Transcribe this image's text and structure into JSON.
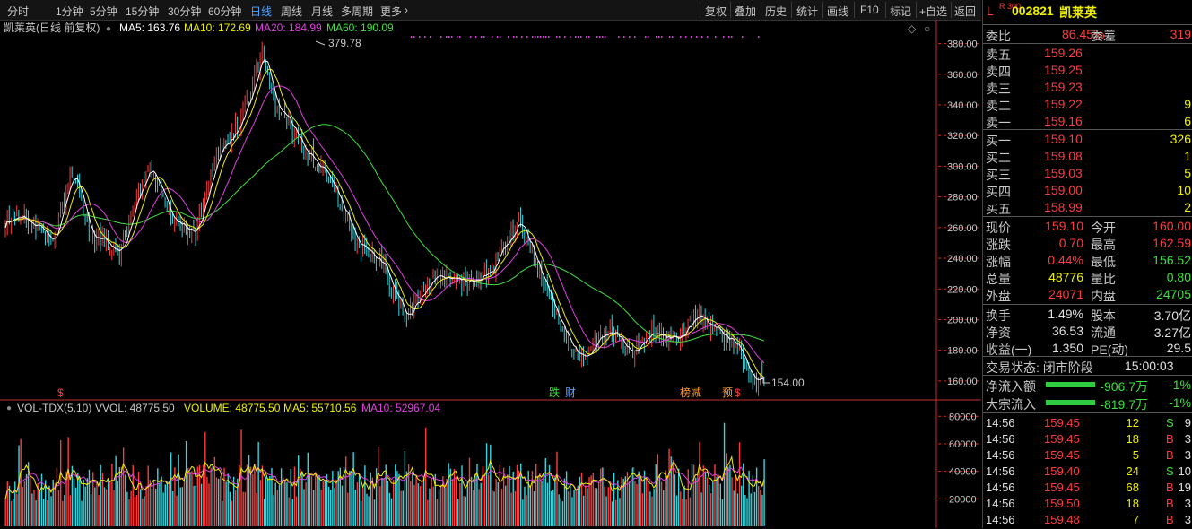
{
  "toolbar": {
    "periods": [
      "分时",
      "1分钟",
      "5分钟",
      "15分钟",
      "30分钟",
      "60分钟",
      "日线",
      "周线",
      "月线",
      "多周期",
      "更多"
    ],
    "active_period": "日线",
    "right": [
      "复权",
      "叠加",
      "历史",
      "统计",
      "画线",
      "F10",
      "标记",
      "+自选",
      "返回"
    ]
  },
  "legend": {
    "title": "凯莱英(日线 前复权)",
    "ma5": "MA5: 163.76",
    "ma10": "MA10: 172.69",
    "ma20": "MA20: 184.99",
    "ma60": "MA60: 190.09"
  },
  "vol_legend": {
    "name": "VOL-TDX(5,10)",
    "vvol": "VVOL: 48775.50",
    "volume": "VOLUME: 48775.50",
    "ma5": "MA5: 55710.56",
    "ma10": "MA10: 52967.04"
  },
  "annotations": {
    "high": "379.78",
    "low": "154.00"
  },
  "markers": [
    "$",
    "跌",
    "财",
    "榜减",
    "预",
    "$"
  ],
  "colors": {
    "up": "#ff3b3b",
    "down": "#35d6e0",
    "ma5": "#ffffff",
    "ma10": "#f0f000",
    "ma20": "#e040e0",
    "ma60": "#40e040",
    "axis": "#c43030"
  },
  "chart_data": {
    "type": "candlestick",
    "title": "凯莱英(日线 前复权)",
    "price_axis": {
      "ticks": [
        160,
        180,
        200,
        220,
        240,
        260,
        280,
        300,
        320,
        340,
        360,
        380
      ],
      "range": [
        150,
        385
      ]
    },
    "volume_axis": {
      "ticks": [
        20000,
        40000,
        60000,
        80000
      ],
      "range": [
        0,
        88000
      ]
    },
    "close_trend": [
      [
        0,
        265
      ],
      [
        10,
        268
      ],
      [
        25,
        252
      ],
      [
        35,
        298
      ],
      [
        45,
        255
      ],
      [
        60,
        243
      ],
      [
        75,
        302
      ],
      [
        88,
        262
      ],
      [
        100,
        258
      ],
      [
        112,
        310
      ],
      [
        124,
        330
      ],
      [
        135,
        372
      ],
      [
        142,
        340
      ],
      [
        155,
        315
      ],
      [
        165,
        300
      ],
      [
        172,
        290
      ],
      [
        185,
        248
      ],
      [
        198,
        238
      ],
      [
        210,
        200
      ],
      [
        225,
        230
      ],
      [
        240,
        224
      ],
      [
        255,
        232
      ],
      [
        270,
        265
      ],
      [
        282,
        228
      ],
      [
        295,
        186
      ],
      [
        305,
        178
      ],
      [
        318,
        195
      ],
      [
        330,
        176
      ],
      [
        340,
        192
      ],
      [
        352,
        188
      ],
      [
        365,
        203
      ],
      [
        375,
        190
      ],
      [
        385,
        185
      ],
      [
        392,
        160
      ]
    ],
    "last": {
      "ma5": 163.76,
      "ma10": 172.69,
      "ma20": 184.99,
      "ma60": 190.09,
      "vvol": 48775.5,
      "vol_ma5": 55710.56,
      "vol_ma10": 52967.04
    }
  },
  "quote": {
    "flag": "L",
    "code": "002821",
    "name": "凯莱英",
    "code_tag": "R 300",
    "weibi_label": "委比",
    "weibi": "86.45%",
    "weicha_label": "委差",
    "weicha": "319",
    "sell": [
      {
        "label": "卖五",
        "price": "159.26",
        "vol": ""
      },
      {
        "label": "卖四",
        "price": "159.25",
        "vol": ""
      },
      {
        "label": "卖三",
        "price": "159.23",
        "vol": ""
      },
      {
        "label": "卖二",
        "price": "159.22",
        "vol": "9"
      },
      {
        "label": "卖一",
        "price": "159.16",
        "vol": "6"
      }
    ],
    "buy": [
      {
        "label": "买一",
        "price": "159.10",
        "vol": "326"
      },
      {
        "label": "买二",
        "price": "159.08",
        "vol": "1"
      },
      {
        "label": "买三",
        "price": "159.03",
        "vol": "5"
      },
      {
        "label": "买四",
        "price": "159.00",
        "vol": "10"
      },
      {
        "label": "买五",
        "price": "158.99",
        "vol": "2"
      }
    ],
    "stats": [
      {
        "l1": "现价",
        "v1": "159.10",
        "c1": "#ff3b3b",
        "l2": "今开",
        "v2": "160.00",
        "c2": "#ff3b3b"
      },
      {
        "l1": "涨跌",
        "v1": "0.70",
        "c1": "#ff3b3b",
        "l2": "最高",
        "v2": "162.59",
        "c2": "#ff3b3b"
      },
      {
        "l1": "涨幅",
        "v1": "0.44%",
        "c1": "#ff3b3b",
        "l2": "最低",
        "v2": "156.52",
        "c2": "#3be03b"
      },
      {
        "l1": "总量",
        "v1": "48776",
        "c1": "#f0f000",
        "l2": "量比",
        "v2": "0.80",
        "c2": "#3be03b"
      },
      {
        "l1": "外盘",
        "v1": "24071",
        "c1": "#ff3b3b",
        "l2": "内盘",
        "v2": "24705",
        "c2": "#3be03b"
      }
    ],
    "stats2": [
      {
        "l1": "换手",
        "v1": "1.49%",
        "l2": "股本",
        "v2": "3.70亿"
      },
      {
        "l1": "净资",
        "v1": "36.53",
        "l2": "流通",
        "v2": "3.27亿"
      },
      {
        "l1": "收益(一)",
        "v1": "1.350",
        "l2": "PE(动)",
        "v2": "29.5"
      }
    ],
    "trade_status": "交易状态: 闭市阶段",
    "trade_time": "15:00:03",
    "flows": [
      {
        "label": "净流入额",
        "value": "-906.7万",
        "pct": "-1%"
      },
      {
        "label": "大宗流入",
        "value": "-819.7万",
        "pct": "-1%"
      }
    ],
    "ticks": [
      {
        "t": "14:56",
        "p": "159.45",
        "v": "12",
        "s": "S",
        "n": "9"
      },
      {
        "t": "14:56",
        "p": "159.45",
        "v": "18",
        "s": "B",
        "n": "3"
      },
      {
        "t": "14:56",
        "p": "159.45",
        "v": "5",
        "s": "B",
        "n": "3"
      },
      {
        "t": "14:56",
        "p": "159.40",
        "v": "24",
        "s": "S",
        "n": "10"
      },
      {
        "t": "14:56",
        "p": "159.45",
        "v": "68",
        "s": "B",
        "n": "19"
      },
      {
        "t": "14:56",
        "p": "159.50",
        "v": "18",
        "s": "B",
        "n": "3"
      },
      {
        "t": "14:56",
        "p": "159.48",
        "v": "7",
        "s": "B",
        "n": "3"
      }
    ]
  }
}
